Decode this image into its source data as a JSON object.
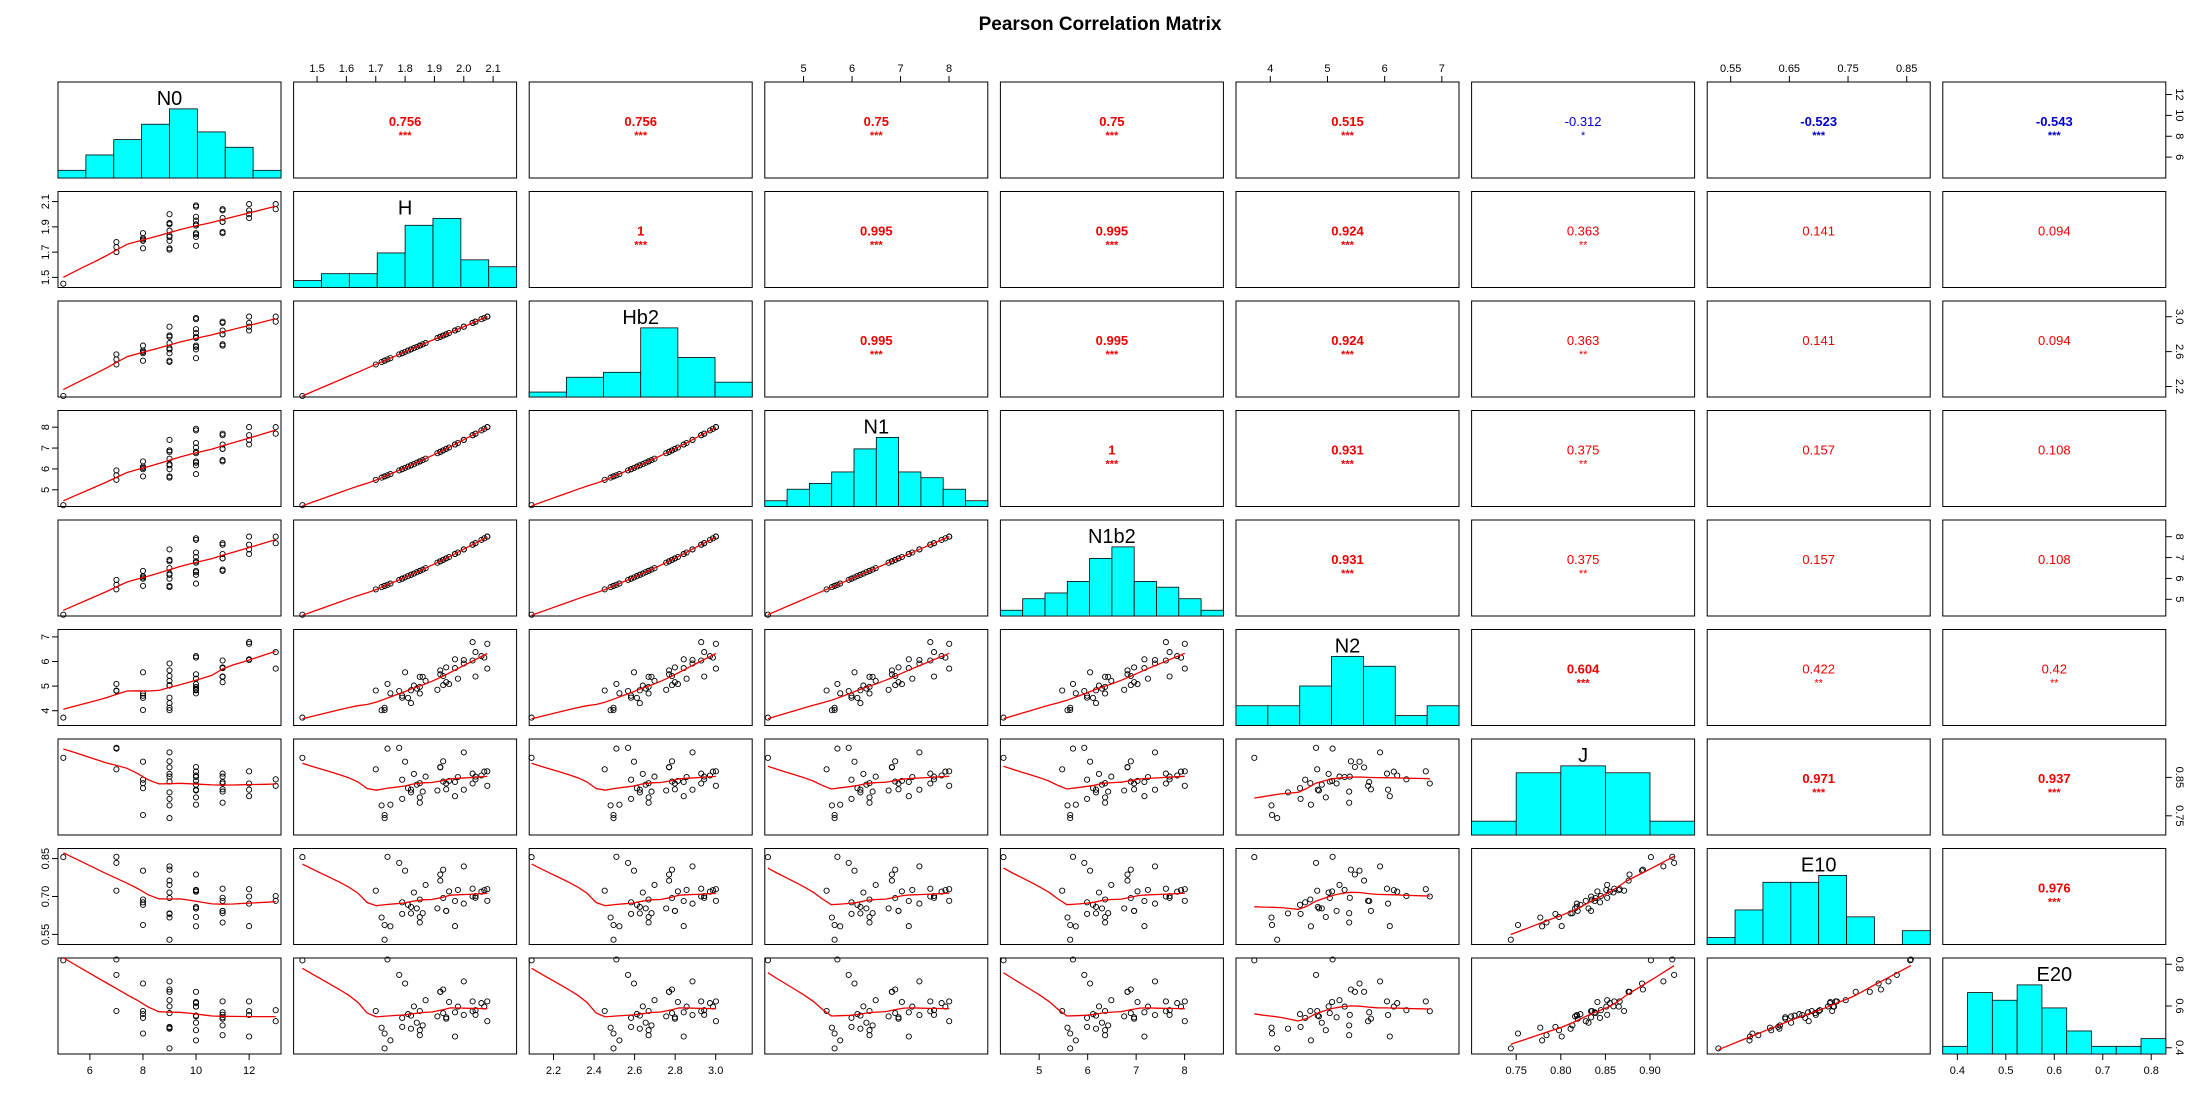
{
  "title": "Pearson Correlation Matrix",
  "chart_data": {
    "type": "scatter-matrix",
    "title": "Pearson Correlation Matrix",
    "variables": [
      "N0",
      "H",
      "Hb2",
      "N1",
      "N1b2",
      "N2",
      "J",
      "E10",
      "E20"
    ],
    "correlations": [
      {
        "row": 0,
        "col": 1,
        "r": "0.756",
        "sig": "***"
      },
      {
        "row": 0,
        "col": 2,
        "r": "0.756",
        "sig": "***"
      },
      {
        "row": 0,
        "col": 3,
        "r": "0.75",
        "sig": "***"
      },
      {
        "row": 0,
        "col": 4,
        "r": "0.75",
        "sig": "***"
      },
      {
        "row": 0,
        "col": 5,
        "r": "0.515",
        "sig": "***"
      },
      {
        "row": 0,
        "col": 6,
        "r": "-0.312",
        "sig": "*"
      },
      {
        "row": 0,
        "col": 7,
        "r": "-0.523",
        "sig": "***"
      },
      {
        "row": 0,
        "col": 8,
        "r": "-0.543",
        "sig": "***"
      },
      {
        "row": 1,
        "col": 2,
        "r": "1",
        "sig": "***"
      },
      {
        "row": 1,
        "col": 3,
        "r": "0.995",
        "sig": "***"
      },
      {
        "row": 1,
        "col": 4,
        "r": "0.995",
        "sig": "***"
      },
      {
        "row": 1,
        "col": 5,
        "r": "0.924",
        "sig": "***"
      },
      {
        "row": 1,
        "col": 6,
        "r": "0.363",
        "sig": "**"
      },
      {
        "row": 1,
        "col": 7,
        "r": "0.141",
        "sig": ""
      },
      {
        "row": 1,
        "col": 8,
        "r": "0.094",
        "sig": ""
      },
      {
        "row": 2,
        "col": 3,
        "r": "0.995",
        "sig": "***"
      },
      {
        "row": 2,
        "col": 4,
        "r": "0.995",
        "sig": "***"
      },
      {
        "row": 2,
        "col": 5,
        "r": "0.924",
        "sig": "***"
      },
      {
        "row": 2,
        "col": 6,
        "r": "0.363",
        "sig": "**"
      },
      {
        "row": 2,
        "col": 7,
        "r": "0.141",
        "sig": ""
      },
      {
        "row": 2,
        "col": 8,
        "r": "0.094",
        "sig": ""
      },
      {
        "row": 3,
        "col": 4,
        "r": "1",
        "sig": "***"
      },
      {
        "row": 3,
        "col": 5,
        "r": "0.931",
        "sig": "***"
      },
      {
        "row": 3,
        "col": 6,
        "r": "0.375",
        "sig": "**"
      },
      {
        "row": 3,
        "col": 7,
        "r": "0.157",
        "sig": ""
      },
      {
        "row": 3,
        "col": 8,
        "r": "0.108",
        "sig": ""
      },
      {
        "row": 4,
        "col": 5,
        "r": "0.931",
        "sig": "***"
      },
      {
        "row": 4,
        "col": 6,
        "r": "0.375",
        "sig": "**"
      },
      {
        "row": 4,
        "col": 7,
        "r": "0.157",
        "sig": ""
      },
      {
        "row": 4,
        "col": 8,
        "r": "0.108",
        "sig": ""
      },
      {
        "row": 5,
        "col": 6,
        "r": "0.604",
        "sig": "***"
      },
      {
        "row": 5,
        "col": 7,
        "r": "0.422",
        "sig": "**"
      },
      {
        "row": 5,
        "col": 8,
        "r": "0.42",
        "sig": "**"
      },
      {
        "row": 6,
        "col": 7,
        "r": "0.971",
        "sig": "***"
      },
      {
        "row": 6,
        "col": 8,
        "r": "0.937",
        "sig": "***"
      },
      {
        "row": 7,
        "col": 8,
        "r": "0.976",
        "sig": "***"
      }
    ],
    "ranges": [
      [
        4.8,
        13.2
      ],
      [
        1.42,
        2.18
      ],
      [
        2.08,
        3.18
      ],
      [
        4.2,
        8.8
      ],
      [
        4.2,
        8.8
      ],
      [
        3.4,
        7.3
      ],
      [
        0.7,
        0.95
      ],
      [
        0.51,
        0.89
      ],
      [
        0.37,
        0.83
      ]
    ],
    "ticks": [
      {
        "values": [
          6,
          8,
          10,
          12
        ],
        "labels": [
          "6",
          "8",
          "10",
          "12"
        ]
      },
      {
        "values": [
          1.5,
          1.6,
          1.7,
          1.8,
          1.9,
          2.0,
          2.1
        ],
        "labels": [
          "1.5",
          "1.6",
          "1.7",
          "1.8",
          "1.9",
          "2.0",
          "2.1"
        ]
      },
      {
        "values": [
          2.2,
          2.4,
          2.6,
          2.8,
          3.0
        ],
        "labels": [
          "2.2",
          "2.4",
          "2.6",
          "2.8",
          "3.0"
        ]
      },
      {
        "values": [
          5,
          6,
          7,
          8
        ],
        "labels": [
          "5",
          "6",
          "7",
          "8"
        ]
      },
      {
        "values": [
          5,
          6,
          7,
          8
        ],
        "labels": [
          "5",
          "6",
          "7",
          "8"
        ]
      },
      {
        "values": [
          4,
          5,
          6,
          7
        ],
        "labels": [
          "4",
          "5",
          "6",
          "7"
        ]
      },
      {
        "values": [
          0.75,
          0.8,
          0.85,
          0.9
        ],
        "labels": [
          "0.75",
          "0.80",
          "0.85",
          "0.90"
        ]
      },
      {
        "values": [
          0.55,
          0.65,
          0.75,
          0.85
        ],
        "labels": [
          "0.55",
          "0.65",
          "0.75",
          "0.85"
        ]
      },
      {
        "values": [
          0.4,
          0.5,
          0.6,
          0.7,
          0.8
        ],
        "labels": [
          "0.4",
          "0.5",
          "0.6",
          "0.7",
          "0.8"
        ]
      }
    ],
    "side_ticks": [
      [],
      {
        "values": [
          1.5,
          1.7,
          1.9,
          2.1
        ],
        "labels": [
          "1.5",
          "1.7",
          "1.9",
          "2.1"
        ]
      },
      {
        "values": [
          2.2,
          2.6,
          3.0
        ],
        "labels": [
          "2.2",
          "2.6",
          "3.0"
        ]
      },
      {
        "values": [
          5,
          6,
          7,
          8
        ],
        "labels": [
          "5",
          "6",
          "7",
          "8"
        ]
      },
      {
        "values": [
          5,
          6,
          7,
          8
        ],
        "labels": [
          "5",
          "6",
          "7",
          "8"
        ]
      },
      {
        "values": [
          4,
          5,
          6,
          7
        ],
        "labels": [
          "4",
          "5",
          "6",
          "7"
        ]
      },
      {
        "values": [
          0.75,
          0.85
        ],
        "labels": [
          "0.75",
          "0.85"
        ]
      },
      {
        "values": [
          0.55,
          0.7,
          0.85
        ],
        "labels": [
          "0.55",
          "0.70",
          "0.85"
        ]
      },
      {
        "values": [
          0.4,
          0.6,
          0.8
        ],
        "labels": [
          "0.4",
          "0.6",
          "0.8"
        ]
      }
    ],
    "n0_side_ticks": {
      "values": [
        6,
        8,
        10,
        12
      ],
      "labels": [
        "6",
        "8",
        "10",
        "12"
      ]
    },
    "histograms": [
      [
        1,
        3,
        5,
        7,
        9,
        6,
        4,
        1
      ],
      [
        1,
        2,
        2,
        5,
        9,
        10,
        4,
        3
      ],
      [
        1,
        4,
        5,
        14,
        8,
        3
      ],
      [
        1,
        3,
        4,
        6,
        10,
        12,
        6,
        5,
        3,
        1
      ],
      [
        1,
        3,
        4,
        6,
        10,
        12,
        6,
        5,
        3,
        1
      ],
      [
        2,
        2,
        4,
        7,
        6,
        1,
        2
      ],
      [
        2,
        9,
        10,
        9,
        2
      ],
      [
        1,
        5,
        9,
        9,
        10,
        4,
        0,
        2
      ],
      [
        1,
        8,
        7,
        9,
        6,
        3,
        1,
        1,
        2
      ]
    ],
    "series": [
      {
        "name": "N0",
        "values": [
          5,
          7,
          7,
          7,
          8,
          8,
          8,
          8,
          8,
          9,
          9,
          9,
          9,
          9,
          9,
          9,
          9,
          9,
          9,
          10,
          10,
          10,
          10,
          10,
          10,
          10,
          10,
          10,
          10,
          11,
          11,
          11,
          11,
          11,
          11,
          11,
          12,
          12,
          12,
          12,
          13,
          13
        ]
      },
      {
        "name": "J",
        "values": [
          0.901,
          0.925,
          0.927,
          0.871,
          0.891,
          0.752,
          0.822,
          0.835,
          0.844,
          0.892,
          0.811,
          0.777,
          0.859,
          0.852,
          0.876,
          0.794,
          0.839,
          0.915,
          0.744,
          0.818,
          0.851,
          0.841,
          0.831,
          0.877,
          0.779,
          0.798,
          0.865,
          0.855,
          0.816,
          0.834,
          0.784,
          0.813,
          0.86,
          0.852,
          0.819,
          0.838,
          0.834,
          0.818,
          0.801,
          0.866,
          0.828,
          0.845
        ]
      },
      {
        "name": "E10",
        "values": [
          0.856,
          0.857,
          0.833,
          0.723,
          0.802,
          0.587,
          0.667,
          0.688,
          0.677,
          0.806,
          0.633,
          0.617,
          0.716,
          0.746,
          0.763,
          0.631,
          0.694,
          0.819,
          0.529,
          0.659,
          0.726,
          0.72,
          0.653,
          0.787,
          0.582,
          0.619,
          0.725,
          0.719,
          0.653,
          0.643,
          0.597,
          0.634,
          0.731,
          0.695,
          0.643,
          0.682,
          0.7,
          0.672,
          0.583,
          0.729,
          0.683,
          0.702
        ]
      },
      {
        "name": "H",
        "values": [
          1.45,
          1.74,
          1.78,
          1.7,
          1.8,
          1.73,
          1.81,
          1.85,
          1.79,
          1.93,
          1.82,
          1.72,
          1.83,
          1.87,
          1.92,
          1.79,
          1.93,
          2.0,
          1.73,
          1.82,
          1.98,
          1.95,
          1.84,
          1.92,
          1.75,
          1.85,
          2.07,
          2.06,
          1.91,
          1.94,
          1.85,
          1.86,
          2.03,
          2.04,
          1.94,
          1.97,
          2.03,
          2.0,
          1.97,
          2.08,
          2.08,
          2.04
        ]
      },
      {
        "name": "N2",
        "values": [
          3.72,
          5.09,
          4.8,
          4.82,
          5.56,
          4.03,
          4.52,
          4.7,
          4.61,
          5.41,
          4.31,
          4.02,
          5.02,
          5.21,
          5.64,
          4.53,
          5.04,
          5.92,
          4.12,
          4.83,
          5.3,
          5.08,
          4.9,
          5.48,
          4.71,
          4.97,
          6.16,
          6.22,
          4.85,
          5.16,
          5.38,
          5.38,
          6.04,
          5.39,
          5.76,
          5.73,
          6.79,
          6.06,
          6.09,
          6.72,
          5.71,
          6.38
        ]
      },
      {
        "name": "E20",
        "values": [
          0.819,
          0.823,
          0.749,
          0.576,
          0.708,
          0.468,
          0.561,
          0.576,
          0.543,
          0.679,
          0.491,
          0.496,
          0.598,
          0.628,
          0.668,
          0.5,
          0.566,
          0.718,
          0.397,
          0.554,
          0.597,
          0.619,
          0.52,
          0.668,
          0.435,
          0.484,
          0.597,
          0.614,
          0.55,
          0.546,
          0.46,
          0.507,
          0.622,
          0.558,
          0.539,
          0.57,
          0.575,
          0.557,
          0.454,
          0.622,
          0.527,
          0.58
        ]
      }
    ]
  }
}
